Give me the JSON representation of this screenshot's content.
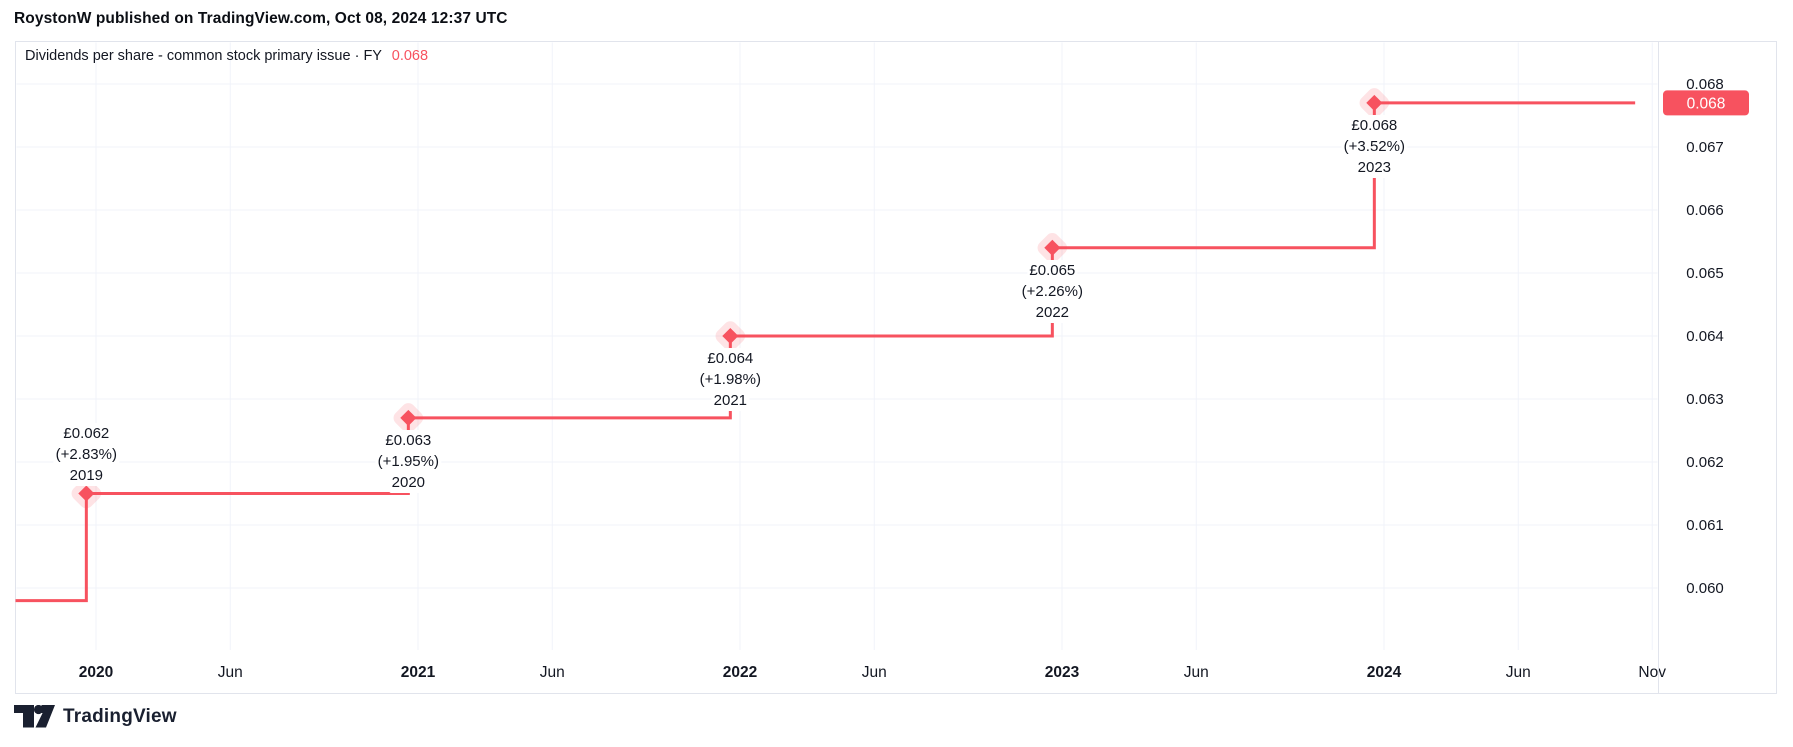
{
  "header": {
    "attribution": "RoystonW published on TradingView.com, Oct 08, 2024 12:37 UTC"
  },
  "chart": {
    "title": "Dividends per share - common stock primary issue · FY",
    "current_value": "0.068"
  },
  "chart_data": {
    "type": "line",
    "subtype": "step-line-with-diamond-markers",
    "title": "Dividends per share - common stock primary issue · FY",
    "xlabel": "",
    "ylabel": "",
    "ylim": [
      0.06,
      0.068
    ],
    "grid": true,
    "legend_position": "top-left-inline",
    "currency": "GBP",
    "points": [
      {
        "fiscal_year": "2019",
        "x_year": 2019.97,
        "value": 0.0615,
        "label_value": "£0.062",
        "label_change": "(+2.83%)",
        "label_side": "above"
      },
      {
        "fiscal_year": "2020",
        "x_year": 2020.97,
        "value": 0.0627,
        "label_value": "£0.063",
        "label_change": "(+1.95%)",
        "label_side": "below"
      },
      {
        "fiscal_year": "2021",
        "x_year": 2021.97,
        "value": 0.064,
        "label_value": "£0.064",
        "label_change": "(+1.98%)",
        "label_side": "below"
      },
      {
        "fiscal_year": "2022",
        "x_year": 2022.97,
        "value": 0.0654,
        "label_value": "£0.065",
        "label_change": "(+2.26%)",
        "label_side": "below"
      },
      {
        "fiscal_year": "2023",
        "x_year": 2023.97,
        "value": 0.0677,
        "label_value": "£0.068",
        "label_change": "(+3.52%)",
        "label_side": "below"
      }
    ],
    "leadin_value": 0.0598,
    "line_end_x_year": 2024.78,
    "y_axis": {
      "ticks": [
        0.068,
        0.067,
        0.066,
        0.065,
        0.064,
        0.063,
        0.062,
        0.061,
        0.06
      ],
      "tick_labels": [
        "0.068",
        "0.067",
        "0.066",
        "0.065",
        "0.064",
        "0.063",
        "0.062",
        "0.061",
        "0.060"
      ],
      "last_price_label": "0.068"
    },
    "x_axis": {
      "ticks": [
        {
          "x_year": 2020.0,
          "label": "2020",
          "major": true
        },
        {
          "x_year": 2020.417,
          "label": "Jun",
          "major": false
        },
        {
          "x_year": 2021.0,
          "label": "2021",
          "major": true
        },
        {
          "x_year": 2021.417,
          "label": "Jun",
          "major": false
        },
        {
          "x_year": 2022.0,
          "label": "2022",
          "major": true
        },
        {
          "x_year": 2022.417,
          "label": "Jun",
          "major": false
        },
        {
          "x_year": 2023.0,
          "label": "2023",
          "major": true
        },
        {
          "x_year": 2023.417,
          "label": "Jun",
          "major": false
        },
        {
          "x_year": 2024.0,
          "label": "2024",
          "major": true
        },
        {
          "x_year": 2024.417,
          "label": "Jun",
          "major": false
        },
        {
          "x_year": 2024.833,
          "label": "Nov",
          "major": false
        }
      ]
    }
  },
  "footer": {
    "brand": "TradingView"
  },
  "colors": {
    "accent": "#F7525F",
    "marker_halo": "rgba(247,82,95,0.16)",
    "grid": "#F0F3FA",
    "frame": "#E1E4EC",
    "text": "#131722",
    "badge_text": "#FFFFFF"
  }
}
